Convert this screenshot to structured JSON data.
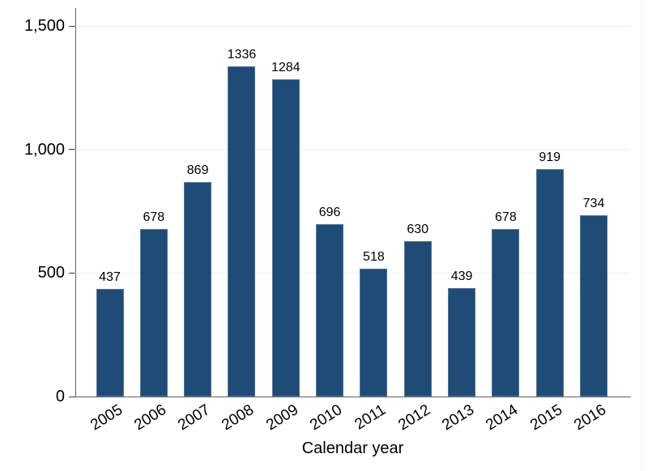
{
  "chart_data": {
    "type": "bar",
    "title": "",
    "categories": [
      "2005",
      "2006",
      "2007",
      "2008",
      "2009",
      "2010",
      "2011",
      "2012",
      "2013",
      "2014",
      "2015",
      "2016"
    ],
    "values": [
      437,
      678,
      869,
      1336,
      1284,
      696,
      518,
      630,
      439,
      678,
      919,
      734
    ],
    "bar_labels": [
      "437",
      "678",
      "869",
      "1336",
      "1284",
      "696",
      "518",
      "630",
      "439",
      "678",
      "919",
      "734"
    ],
    "xlabel": "Calendar year",
    "ylabel": "",
    "ylim": [
      0,
      1500
    ],
    "yticks": [
      {
        "value": 0,
        "label": "0"
      },
      {
        "value": 500,
        "label": "500"
      },
      {
        "value": 1000,
        "label": "1,000"
      },
      {
        "value": 1500,
        "label": "1,500"
      }
    ],
    "grid": true,
    "legend": false,
    "x_label_rotation_deg": -32,
    "colors": {
      "bar_fill": "#1e4c77",
      "bar_border": "#52749a",
      "gridline": "#e9eef3",
      "axis": "#606060",
      "tick": "#3c3c3c",
      "text": "#000000",
      "background": "#ffffff"
    }
  }
}
